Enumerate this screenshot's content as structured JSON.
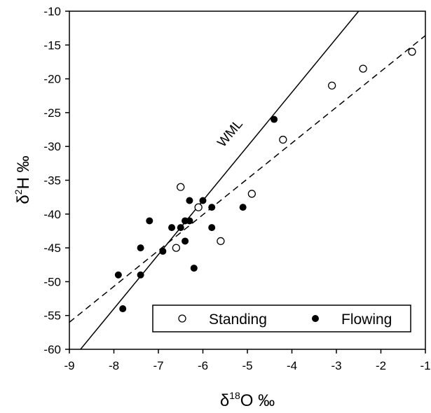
{
  "chart_data": {
    "type": "scatter",
    "xlabel": {
      "base": "δ",
      "sup": "18",
      "rest": "O ‰"
    },
    "ylabel": {
      "base": "δ",
      "sup": "2",
      "rest": "H ‰"
    },
    "xlim": [
      -9,
      -1
    ],
    "ylim": [
      -60,
      -10
    ],
    "x_ticks": [
      "-9",
      "-8",
      "-7",
      "-6",
      "-5",
      "-4",
      "-3",
      "-2",
      "-1"
    ],
    "y_ticks": [
      "-10",
      "-15",
      "-20",
      "-25",
      "-30",
      "-35",
      "-40",
      "-45",
      "-50",
      "-55",
      "-60"
    ],
    "grid": false,
    "legend_position": "bottom-right",
    "series": [
      {
        "name": "Standing",
        "marker": "open-circle",
        "points": [
          {
            "x": -6.5,
            "y": -36
          },
          {
            "x": -6.1,
            "y": -39
          },
          {
            "x": -6.6,
            "y": -45
          },
          {
            "x": -5.6,
            "y": -44
          },
          {
            "x": -4.9,
            "y": -37
          },
          {
            "x": -4.2,
            "y": -29
          },
          {
            "x": -3.1,
            "y": -21
          },
          {
            "x": -2.4,
            "y": -18.5
          },
          {
            "x": -1.3,
            "y": -16
          }
        ]
      },
      {
        "name": "Flowing",
        "marker": "filled-circle",
        "points": [
          {
            "x": -7.9,
            "y": -49
          },
          {
            "x": -7.8,
            "y": -54
          },
          {
            "x": -7.4,
            "y": -45
          },
          {
            "x": -7.4,
            "y": -49
          },
          {
            "x": -7.2,
            "y": -41
          },
          {
            "x": -6.9,
            "y": -45.5
          },
          {
            "x": -6.7,
            "y": -42
          },
          {
            "x": -6.5,
            "y": -42
          },
          {
            "x": -6.4,
            "y": -41
          },
          {
            "x": -6.4,
            "y": -44
          },
          {
            "x": -6.3,
            "y": -38
          },
          {
            "x": -6.3,
            "y": -41
          },
          {
            "x": -6.2,
            "y": -48
          },
          {
            "x": -6.0,
            "y": -38
          },
          {
            "x": -5.8,
            "y": -39
          },
          {
            "x": -5.8,
            "y": -42
          },
          {
            "x": -5.1,
            "y": -39
          },
          {
            "x": -4.4,
            "y": -26
          }
        ]
      }
    ],
    "lines": [
      {
        "name": "WML",
        "style": "solid",
        "slope": 8,
        "intercept": 10
      },
      {
        "name": "",
        "style": "dashed",
        "slope": 5.3,
        "intercept": -8.3
      }
    ],
    "annotations": [
      {
        "text": "WML"
      }
    ],
    "colors": {
      "axis": "#000000",
      "marker": "#000000",
      "background": "#ffffff"
    }
  }
}
